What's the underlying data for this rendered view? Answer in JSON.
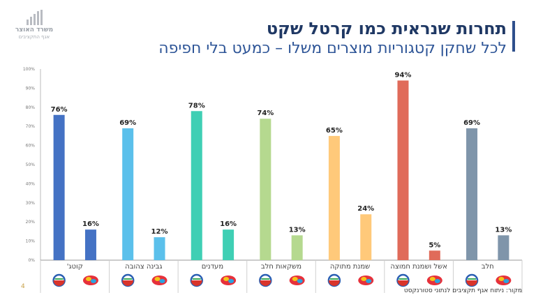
{
  "logo": {
    "line1": "משרד האוצר",
    "line2": "אגף התקציבים"
  },
  "title": {
    "line1": "תחרות שנראית כמו קרטל שקט",
    "line2": "לכל שחקן קטגוריות מוצרים משלו – כמעט בלי חפיפה"
  },
  "footer": {
    "page_number": "4",
    "source": "מקור: ניתוח אגף תקציבים לנתוני סטורנקסט"
  },
  "colors": {
    "categories": [
      "#4472c4",
      "#5bc0eb",
      "#3fcfb4",
      "#b5d98f",
      "#ffc97a",
      "#e06b5a",
      "#7f95aa"
    ]
  },
  "chart_data": {
    "type": "bar",
    "categories": [
      "קוטג'",
      "גבינה צהובה",
      "מעדנים",
      "משקאות חלב",
      "שמנת מתוקה",
      "אשל ושמנת חמוצה",
      "חלב"
    ],
    "series": [
      {
        "values": [
          76,
          69,
          78,
          74,
          65,
          94,
          69
        ]
      },
      {
        "values": [
          16,
          12,
          16,
          13,
          24,
          5,
          13
        ]
      }
    ],
    "data_labels": {
      "first": [
        "76%",
        "69%",
        "78%",
        "74%",
        "65%",
        "94%",
        "69%"
      ],
      "second": [
        "16%",
        "12%",
        "16%",
        "13%",
        "24%",
        "5%",
        "13%"
      ]
    },
    "yticks": [
      "0%",
      "10%",
      "20%",
      "30%",
      "40%",
      "50%",
      "60%",
      "70%",
      "80%",
      "90%",
      "100%"
    ],
    "ylim": [
      0,
      100
    ],
    "grid": false,
    "legend": "none"
  }
}
